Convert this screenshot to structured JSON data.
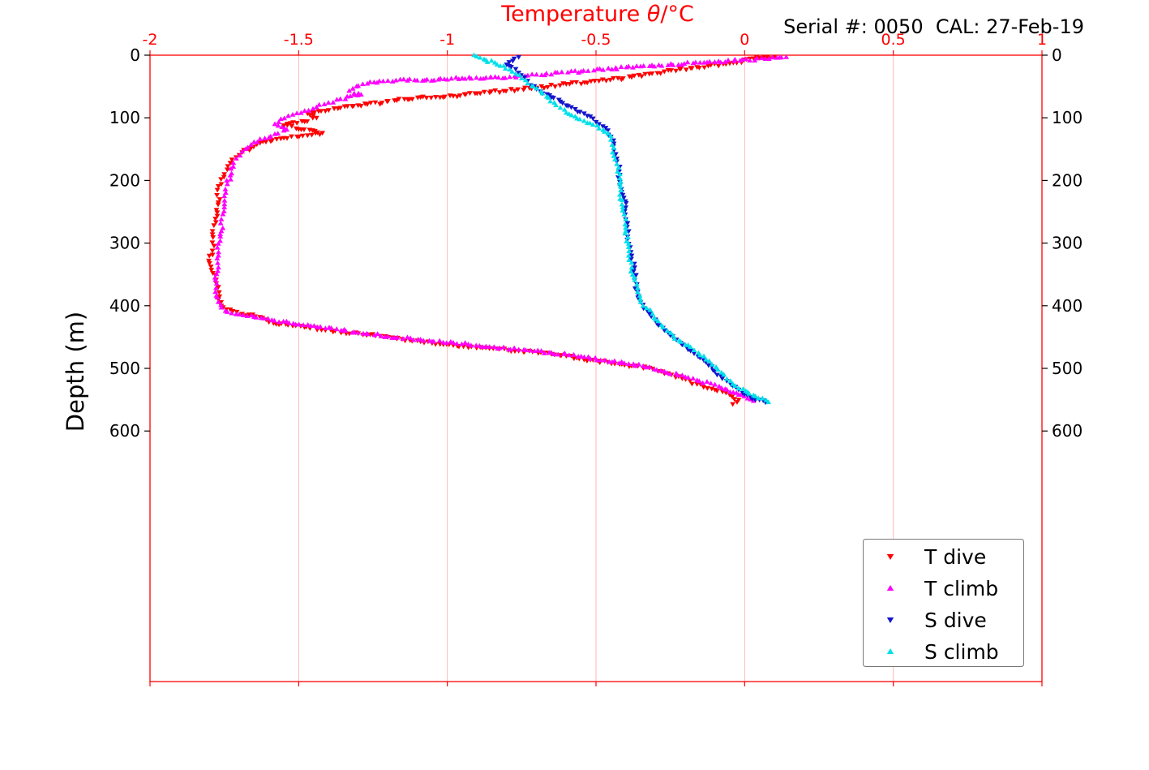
{
  "figure": {
    "title_prefix": "Temperature ",
    "title_theta": "θ",
    "title_suffix": "/°C",
    "annotation": "Serial #: 0050  CAL: 27-Feb-19",
    "ylabel": "Depth (m)"
  },
  "colors": {
    "axis": "#ff0000",
    "grid": "#ffb8b8",
    "x_tick_label": "#ff0000",
    "y_tick_label": "#000000",
    "annotation_text": "#000000",
    "legend_border": "#777777",
    "legend_bg": "#ffffff"
  },
  "chart_data": {
    "type": "scatter",
    "title": "Temperature θ/°C",
    "annotation": "Serial #: 0050 CAL: 27-Feb-19",
    "xlabel": "Temperature θ/°C (top axis)",
    "ylabel": "Depth (m)",
    "xlim": [
      -2,
      1
    ],
    "ylim": [
      0,
      1000
    ],
    "x_ticks": [
      -2,
      -1.5,
      -1,
      -0.5,
      0,
      0.5,
      1
    ],
    "y_ticks": [
      0,
      100,
      200,
      300,
      400,
      500,
      600
    ],
    "grid": "vertical gridlines only, light red",
    "y_axis_inverted": true,
    "legend_position": "lower right",
    "series": [
      {
        "name": "T dive",
        "color": "#ff0000",
        "marker": "triangle-down",
        "points": [
          [
            0.1,
            3
          ],
          [
            0.03,
            5
          ],
          [
            -0.05,
            13
          ],
          [
            -0.16,
            19
          ],
          [
            -0.27,
            26
          ],
          [
            -0.38,
            35
          ],
          [
            -0.49,
            41
          ],
          [
            -0.6,
            46
          ],
          [
            -0.7,
            52
          ],
          [
            -0.81,
            57
          ],
          [
            -0.9,
            61
          ],
          [
            -0.98,
            65
          ],
          [
            -1.09,
            67
          ],
          [
            -1.17,
            72
          ],
          [
            -1.22,
            76
          ],
          [
            -1.3,
            80
          ],
          [
            -1.36,
            84
          ],
          [
            -1.41,
            89
          ],
          [
            -1.47,
            93
          ],
          [
            -1.44,
            100
          ],
          [
            -1.48,
            106
          ],
          [
            -1.55,
            112
          ],
          [
            -1.5,
            118
          ],
          [
            -1.42,
            124
          ],
          [
            -1.47,
            128
          ],
          [
            -1.56,
            133
          ],
          [
            -1.63,
            140
          ],
          [
            -1.66,
            148
          ],
          [
            -1.69,
            155
          ],
          [
            -1.71,
            163
          ],
          [
            -1.73,
            172
          ],
          [
            -1.75,
            190
          ],
          [
            -1.77,
            209
          ],
          [
            -1.77,
            235
          ],
          [
            -1.78,
            261
          ],
          [
            -1.79,
            286
          ],
          [
            -1.79,
            312
          ],
          [
            -1.8,
            332
          ],
          [
            -1.78,
            351
          ],
          [
            -1.77,
            370
          ],
          [
            -1.77,
            390
          ],
          [
            -1.76,
            400
          ],
          [
            -1.73,
            406
          ],
          [
            -1.69,
            413
          ],
          [
            -1.63,
            418
          ],
          [
            -1.6,
            426
          ],
          [
            -1.52,
            432
          ],
          [
            -1.41,
            439
          ],
          [
            -1.3,
            444
          ],
          [
            -1.2,
            450
          ],
          [
            -1.09,
            457
          ],
          [
            -0.98,
            463
          ],
          [
            -0.87,
            467
          ],
          [
            -0.76,
            472
          ],
          [
            -0.65,
            477
          ],
          [
            -0.6,
            480
          ],
          [
            -0.54,
            486
          ],
          [
            -0.46,
            490
          ],
          [
            -0.38,
            496
          ],
          [
            -0.32,
            499
          ],
          [
            -0.27,
            508
          ],
          [
            -0.21,
            516
          ],
          [
            -0.16,
            525
          ],
          [
            -0.1,
            534
          ],
          [
            -0.05,
            542
          ],
          [
            -0.02,
            550
          ],
          [
            -0.04,
            557
          ]
        ]
      },
      {
        "name": "T climb",
        "color": "#ff00ff",
        "marker": "triangle-up",
        "points": [
          [
            0.14,
            3
          ],
          [
            0.07,
            6
          ],
          [
            -0.15,
            12
          ],
          [
            -0.35,
            18
          ],
          [
            -0.55,
            26
          ],
          [
            -0.7,
            31
          ],
          [
            -0.79,
            35
          ],
          [
            -0.87,
            36
          ],
          [
            -0.95,
            37
          ],
          [
            -1.03,
            39
          ],
          [
            -1.11,
            40
          ],
          [
            -1.2,
            41
          ],
          [
            -1.26,
            43
          ],
          [
            -1.3,
            49
          ],
          [
            -1.33,
            57
          ],
          [
            -1.29,
            63
          ],
          [
            -1.36,
            70
          ],
          [
            -1.4,
            76
          ],
          [
            -1.44,
            83
          ],
          [
            -1.48,
            89
          ],
          [
            -1.52,
            95
          ],
          [
            -1.56,
            102
          ],
          [
            -1.58,
            110
          ],
          [
            -1.54,
            119
          ],
          [
            -1.58,
            126
          ],
          [
            -1.63,
            134
          ],
          [
            -1.66,
            143
          ],
          [
            -1.69,
            154
          ],
          [
            -1.71,
            165
          ],
          [
            -1.72,
            178
          ],
          [
            -1.73,
            192
          ],
          [
            -1.74,
            206
          ],
          [
            -1.75,
            225
          ],
          [
            -1.75,
            243
          ],
          [
            -1.76,
            262
          ],
          [
            -1.76,
            281
          ],
          [
            -1.77,
            301
          ],
          [
            -1.77,
            320
          ],
          [
            -1.77,
            339
          ],
          [
            -1.78,
            359
          ],
          [
            -1.78,
            378
          ],
          [
            -1.77,
            394
          ],
          [
            -1.76,
            403
          ],
          [
            -1.74,
            410
          ],
          [
            -1.7,
            414
          ],
          [
            -1.65,
            418
          ],
          [
            -1.59,
            423
          ],
          [
            -1.51,
            430
          ],
          [
            -1.41,
            436
          ],
          [
            -1.3,
            443
          ],
          [
            -1.2,
            449
          ],
          [
            -1.09,
            454
          ],
          [
            -0.98,
            459
          ],
          [
            -0.87,
            465
          ],
          [
            -0.76,
            470
          ],
          [
            -0.65,
            475
          ],
          [
            -0.55,
            481
          ],
          [
            -0.47,
            487
          ],
          [
            -0.39,
            493
          ],
          [
            -0.32,
            498
          ],
          [
            -0.27,
            505
          ],
          [
            -0.21,
            511
          ],
          [
            -0.16,
            519
          ],
          [
            -0.1,
            526
          ],
          [
            -0.06,
            534
          ],
          [
            -0.02,
            542
          ],
          [
            0.01,
            548
          ],
          [
            0.03,
            552
          ]
        ]
      },
      {
        "name": "S dive",
        "color": "#1414cc",
        "marker": "triangle-down",
        "points": [
          [
            -0.76,
            3
          ],
          [
            -0.78,
            9
          ],
          [
            -0.8,
            15
          ],
          [
            -0.77,
            22
          ],
          [
            -0.76,
            28
          ],
          [
            -0.74,
            35
          ],
          [
            -0.73,
            41
          ],
          [
            -0.72,
            48
          ],
          [
            -0.7,
            54
          ],
          [
            -0.68,
            61
          ],
          [
            -0.65,
            67
          ],
          [
            -0.62,
            74
          ],
          [
            -0.6,
            80
          ],
          [
            -0.57,
            86
          ],
          [
            -0.54,
            93
          ],
          [
            -0.51,
            101
          ],
          [
            -0.49,
            110
          ],
          [
            -0.46,
            120
          ],
          [
            -0.45,
            130
          ],
          [
            -0.44,
            141
          ],
          [
            -0.44,
            152
          ],
          [
            -0.43,
            165
          ],
          [
            -0.42,
            178
          ],
          [
            -0.42,
            191
          ],
          [
            -0.42,
            208
          ],
          [
            -0.41,
            223
          ],
          [
            -0.4,
            243
          ],
          [
            -0.4,
            262
          ],
          [
            -0.39,
            281
          ],
          [
            -0.39,
            301
          ],
          [
            -0.38,
            320
          ],
          [
            -0.37,
            339
          ],
          [
            -0.37,
            359
          ],
          [
            -0.36,
            378
          ],
          [
            -0.35,
            394
          ],
          [
            -0.34,
            404
          ],
          [
            -0.32,
            413
          ],
          [
            -0.3,
            422
          ],
          [
            -0.29,
            431
          ],
          [
            -0.27,
            439
          ],
          [
            -0.25,
            447
          ],
          [
            -0.23,
            454
          ],
          [
            -0.21,
            462
          ],
          [
            -0.19,
            470
          ],
          [
            -0.17,
            476
          ],
          [
            -0.15,
            483
          ],
          [
            -0.13,
            490
          ],
          [
            -0.11,
            497
          ],
          [
            -0.1,
            505
          ],
          [
            -0.08,
            512
          ],
          [
            -0.06,
            520
          ],
          [
            -0.04,
            528
          ],
          [
            -0.02,
            534
          ],
          [
            0.0,
            541
          ],
          [
            0.02,
            546
          ],
          [
            0.05,
            550
          ],
          [
            0.07,
            554
          ]
        ]
      },
      {
        "name": "S climb",
        "color": "#00e0ea",
        "marker": "triangle-up",
        "points": [
          [
            -0.91,
            0
          ],
          [
            -0.89,
            4
          ],
          [
            -0.87,
            8
          ],
          [
            -0.84,
            12
          ],
          [
            -0.81,
            17
          ],
          [
            -0.79,
            23
          ],
          [
            -0.77,
            30
          ],
          [
            -0.75,
            37
          ],
          [
            -0.73,
            45
          ],
          [
            -0.7,
            53
          ],
          [
            -0.68,
            61
          ],
          [
            -0.66,
            68
          ],
          [
            -0.64,
            76
          ],
          [
            -0.62,
            84
          ],
          [
            -0.6,
            92
          ],
          [
            -0.57,
            98
          ],
          [
            -0.54,
            105
          ],
          [
            -0.51,
            111
          ],
          [
            -0.49,
            117
          ],
          [
            -0.46,
            125
          ],
          [
            -0.45,
            135
          ],
          [
            -0.44,
            148
          ],
          [
            -0.44,
            161
          ],
          [
            -0.43,
            174
          ],
          [
            -0.42,
            190
          ],
          [
            -0.42,
            205
          ],
          [
            -0.42,
            223
          ],
          [
            -0.41,
            243
          ],
          [
            -0.4,
            262
          ],
          [
            -0.4,
            281
          ],
          [
            -0.39,
            301
          ],
          [
            -0.39,
            320
          ],
          [
            -0.38,
            339
          ],
          [
            -0.37,
            359
          ],
          [
            -0.36,
            378
          ],
          [
            -0.35,
            394
          ],
          [
            -0.33,
            404
          ],
          [
            -0.31,
            413
          ],
          [
            -0.3,
            422
          ],
          [
            -0.28,
            431
          ],
          [
            -0.26,
            440
          ],
          [
            -0.24,
            448
          ],
          [
            -0.22,
            456
          ],
          [
            -0.19,
            463
          ],
          [
            -0.17,
            471
          ],
          [
            -0.15,
            479
          ],
          [
            -0.13,
            486
          ],
          [
            -0.11,
            494
          ],
          [
            -0.09,
            502
          ],
          [
            -0.07,
            510
          ],
          [
            -0.06,
            517
          ],
          [
            -0.04,
            525
          ],
          [
            -0.02,
            532
          ],
          [
            0.01,
            538
          ],
          [
            0.03,
            543
          ],
          [
            0.06,
            548
          ],
          [
            0.08,
            554
          ]
        ]
      }
    ]
  }
}
